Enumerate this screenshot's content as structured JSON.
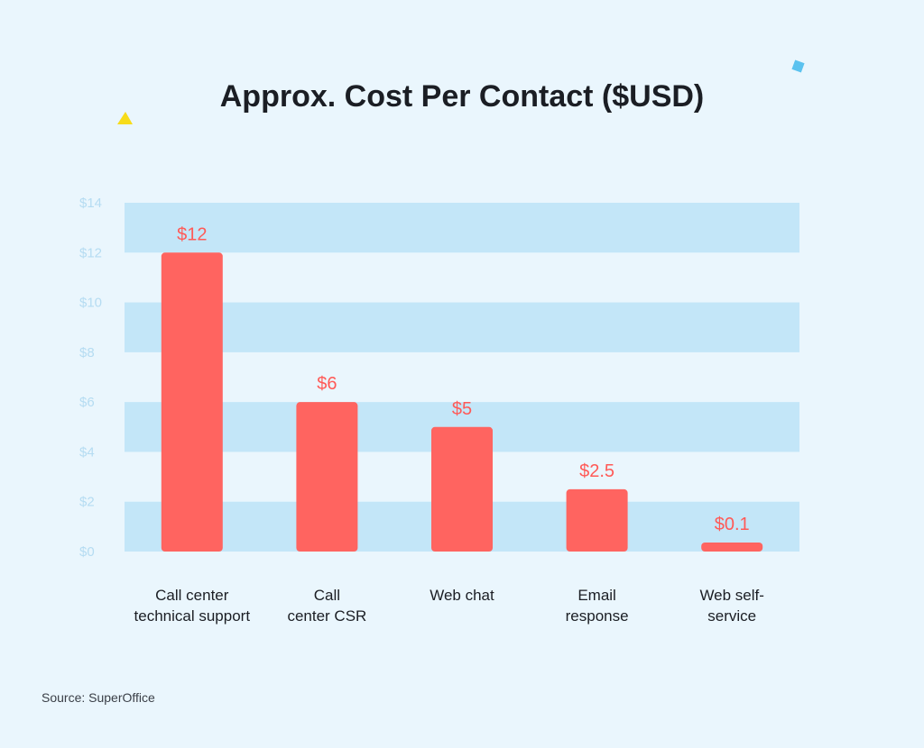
{
  "title": "Approx. Cost Per Contact ($USD)",
  "source": "Source: SuperOffice",
  "colors": {
    "background": "#eaf6fd",
    "band": "#c3e6f8",
    "bar": "#ff6460",
    "bar_label": "#ff5a57",
    "axis_tick": "#b5dcf2",
    "category_text": "#1b1e24",
    "accent_yellow": "#f7dc1a",
    "accent_blue": "#5bc2ef"
  },
  "chart_data": {
    "type": "bar",
    "title": "Approx. Cost Per Contact ($USD)",
    "categories": [
      [
        "Call center",
        "technical support"
      ],
      [
        "Call",
        "center CSR"
      ],
      [
        "Web chat"
      ],
      [
        "Email",
        "response"
      ],
      [
        "Web self-",
        "service"
      ]
    ],
    "values": [
      12,
      6,
      5,
      2.5,
      0.1
    ],
    "value_labels": [
      "$12",
      "$6",
      "$5",
      "$2.5",
      "$0.1"
    ],
    "yticks": [
      0,
      2,
      4,
      6,
      8,
      10,
      12,
      14
    ],
    "ytick_labels": [
      "$0",
      "$2",
      "$4",
      "$6",
      "$8",
      "$10",
      "$12",
      "$14"
    ],
    "ylim": [
      0,
      14
    ],
    "xlabel": "",
    "ylabel": "",
    "grid": "alternating horizontal bands",
    "legend": "none"
  }
}
